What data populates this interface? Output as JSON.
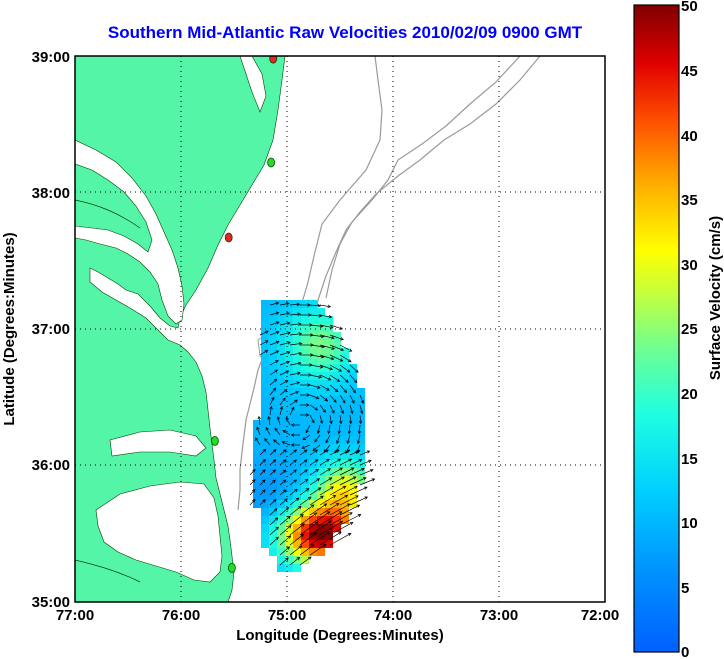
{
  "title": "Southern Mid-Atlantic Raw Velocities 2010/02/09 0900 GMT",
  "xaxis": {
    "label": "Longitude (Degrees:Minutes)",
    "ticks": [
      "77:00",
      "76:00",
      "75:00",
      "74:00",
      "73:00",
      "72:00"
    ]
  },
  "yaxis": {
    "label": "Latitude (Degrees:Minutes)",
    "ticks": [
      "39:00",
      "38:00",
      "37:00",
      "36:00",
      "35:00"
    ]
  },
  "colorbar": {
    "label": "Surface Velocity (cm/s)",
    "ticks": [
      "50",
      "45",
      "40",
      "35",
      "30",
      "25",
      "20",
      "15",
      "10",
      "5",
      "0"
    ],
    "min": 0,
    "max": 50
  },
  "colors": {
    "land": "#55f5a8",
    "water": "#ffffff",
    "bathymetry": "#9a9a9a",
    "title": "#0000ff",
    "station_green": "#22dd22",
    "station_red": "#ee2222"
  },
  "chart_data": {
    "type": "heatmap",
    "extent": {
      "lon": [
        -77,
        -72
      ],
      "lat": [
        35,
        39
      ]
    },
    "grid": "dotted",
    "stations": [
      {
        "lon": -75.13,
        "lat": 38.98,
        "status": "red"
      },
      {
        "lon": -75.15,
        "lat": 38.22,
        "status": "green"
      },
      {
        "lon": -75.55,
        "lat": 37.67,
        "status": "red"
      },
      {
        "lon": -75.68,
        "lat": 36.18,
        "status": "green"
      },
      {
        "lon": -75.52,
        "lat": 35.25,
        "status": "green"
      }
    ],
    "velocity_field_summary": {
      "region_lon": [
        -75.4,
        -74.1
      ],
      "region_lat": [
        35.25,
        37.15
      ],
      "speed_range_cm_s": [
        0,
        50
      ],
      "high_speed_area": "south-east edge near 35.3-35.8 N"
    }
  }
}
